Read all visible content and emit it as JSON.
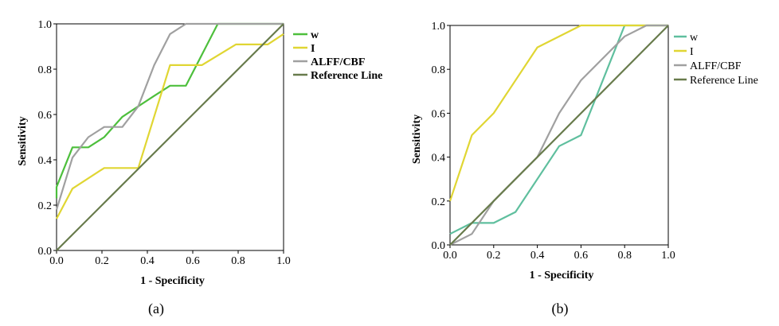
{
  "chart_data": [
    {
      "type": "line",
      "panel_label": "(a)",
      "xlabel": "1 - Specificity",
      "ylabel": "Sensitivity",
      "xlim": [
        0,
        1
      ],
      "ylim": [
        0,
        1
      ],
      "x_ticks": [
        "0.0",
        "0.2",
        "0.4",
        "0.6",
        "0.8",
        "1.0"
      ],
      "y_ticks": [
        "0.0",
        "0.2",
        "0.4",
        "0.6",
        "0.8",
        "1.0"
      ],
      "grid": false,
      "legend_position": "top-right (outside plot)",
      "series": [
        {
          "name": "w",
          "color": "#4dbf3c",
          "points": [
            [
              0.0,
              0.23
            ],
            [
              0.0,
              0.28
            ],
            [
              0.07,
              0.455
            ],
            [
              0.14,
              0.455
            ],
            [
              0.21,
              0.5
            ],
            [
              0.29,
              0.59
            ],
            [
              0.36,
              0.636
            ],
            [
              0.43,
              0.682
            ],
            [
              0.5,
              0.727
            ],
            [
              0.57,
              0.727
            ],
            [
              0.71,
              1.0
            ],
            [
              1.0,
              1.0
            ]
          ]
        },
        {
          "name": "I",
          "color": "#e0d633",
          "points": [
            [
              0.0,
              0.14
            ],
            [
              0.07,
              0.273
            ],
            [
              0.21,
              0.364
            ],
            [
              0.36,
              0.364
            ],
            [
              0.5,
              0.818
            ],
            [
              0.64,
              0.818
            ],
            [
              0.79,
              0.909
            ],
            [
              0.93,
              0.909
            ],
            [
              1.0,
              0.955
            ]
          ]
        },
        {
          "name": "ALFF/CBF",
          "color": "#a0a0a0",
          "points": [
            [
              0.0,
              0.18
            ],
            [
              0.07,
              0.41
            ],
            [
              0.14,
              0.5
            ],
            [
              0.21,
              0.545
            ],
            [
              0.29,
              0.545
            ],
            [
              0.36,
              0.636
            ],
            [
              0.43,
              0.818
            ],
            [
              0.5,
              0.955
            ],
            [
              0.57,
              1.0
            ],
            [
              1.0,
              1.0
            ]
          ]
        },
        {
          "name": "Reference Line",
          "color": "#687b4c",
          "points": [
            [
              0.0,
              0.0
            ],
            [
              1.0,
              1.0
            ]
          ]
        }
      ]
    },
    {
      "type": "line",
      "panel_label": "(b)",
      "xlabel": "1 - Specificity",
      "ylabel": "Sensitivity",
      "xlim": [
        0,
        1
      ],
      "ylim": [
        0,
        1
      ],
      "x_ticks": [
        "0.0",
        "0.2",
        "0.4",
        "0.6",
        "0.8",
        "1.0"
      ],
      "y_ticks": [
        "0.0",
        "0.2",
        "0.4",
        "0.6",
        "0.8",
        "1.0"
      ],
      "grid": false,
      "legend_position": "top-right (outside plot)",
      "series": [
        {
          "name": "w",
          "color": "#5fbf9e",
          "points": [
            [
              0.0,
              0.05
            ],
            [
              0.1,
              0.1
            ],
            [
              0.2,
              0.1
            ],
            [
              0.3,
              0.15
            ],
            [
              0.5,
              0.45
            ],
            [
              0.6,
              0.5
            ],
            [
              0.8,
              1.0
            ],
            [
              1.0,
              1.0
            ]
          ]
        },
        {
          "name": "I",
          "color": "#e0d633",
          "points": [
            [
              0.0,
              0.2
            ],
            [
              0.1,
              0.5
            ],
            [
              0.2,
              0.6
            ],
            [
              0.4,
              0.9
            ],
            [
              0.6,
              1.0
            ],
            [
              1.0,
              1.0
            ]
          ]
        },
        {
          "name": "ALFF/CBF",
          "color": "#a0a0a0",
          "points": [
            [
              0.0,
              0.0
            ],
            [
              0.1,
              0.05
            ],
            [
              0.2,
              0.2
            ],
            [
              0.4,
              0.4
            ],
            [
              0.5,
              0.6
            ],
            [
              0.6,
              0.75
            ],
            [
              0.8,
              0.95
            ],
            [
              0.9,
              1.0
            ],
            [
              1.0,
              1.0
            ]
          ]
        },
        {
          "name": "Reference Line",
          "color": "#687b4c",
          "points": [
            [
              0.0,
              0.0
            ],
            [
              1.0,
              1.0
            ]
          ]
        }
      ]
    }
  ]
}
